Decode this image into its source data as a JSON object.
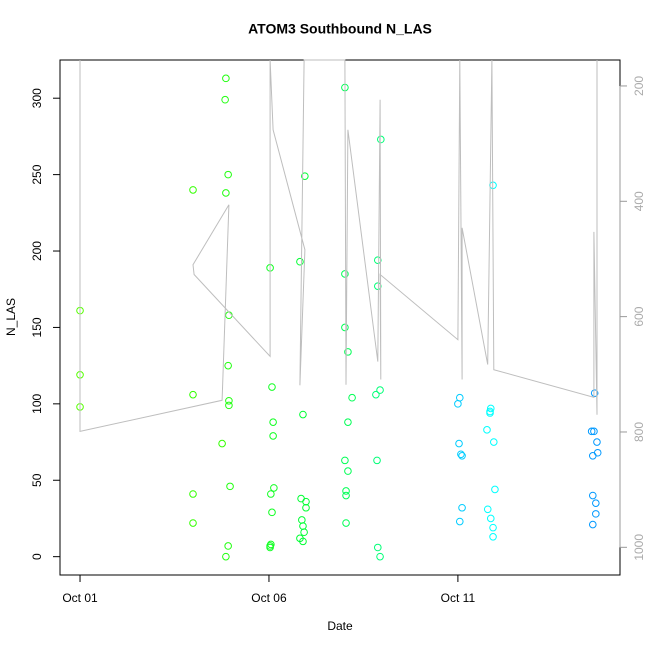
{
  "chart_data": {
    "type": "scatter",
    "title": "ATOM3 Southbound N_LAS",
    "x_label": "Date",
    "y_label": "N_LAS",
    "xlim": [
      -0.53,
      14.29
    ],
    "ylim": [
      -12,
      325
    ],
    "y2lim": [
      1048,
      155
    ],
    "xticks": [
      {
        "value": 0,
        "label": "Oct 01"
      },
      {
        "value": 5,
        "label": "Oct 06"
      },
      {
        "value": 10,
        "label": "Oct 11"
      }
    ],
    "yticks": [
      0,
      50,
      100,
      150,
      200,
      250,
      300
    ],
    "y2ticks": [
      200,
      400,
      600,
      800,
      1000
    ],
    "series": [
      {
        "color": "#55ff00",
        "x": [
          0,
          0,
          0
        ],
        "values": [
          161,
          119,
          98
        ]
      },
      {
        "color": "#33ff00",
        "x": [
          2.99,
          2.99,
          2.99,
          2.99,
          3.76
        ],
        "values": [
          240,
          106,
          41,
          22,
          74
        ]
      },
      {
        "color": "#22ff11",
        "x": [
          3.86,
          3.84,
          3.92,
          3.86,
          3.94,
          3.92,
          3.94,
          3.94,
          3.97,
          3.92,
          3.86
        ],
        "values": [
          313,
          299,
          250,
          238,
          158,
          125,
          102,
          99,
          46,
          7,
          0
        ]
      },
      {
        "color": "#11ff22",
        "x": [
          5.03,
          5.08,
          5.11,
          5.11,
          5.13,
          5.05,
          5.08,
          5.05,
          5.03,
          5.03
        ],
        "values": [
          189,
          111,
          88,
          79,
          45,
          41,
          29,
          8,
          7,
          6
        ]
      },
      {
        "color": "#00ff33",
        "x": [
          5.82,
          5.95,
          5.9,
          5.85,
          5.98,
          5.98,
          5.87,
          5.9,
          5.93,
          5.82,
          5.9
        ],
        "values": [
          193,
          249,
          93,
          38,
          36,
          32,
          24,
          20,
          16,
          12,
          10
        ]
      },
      {
        "color": "#00ff55",
        "x": [
          7.01,
          7.01,
          7.01,
          7.09,
          7.2,
          7.09,
          7.01,
          7.09,
          7.04,
          7.04,
          7.04
        ],
        "values": [
          307,
          185,
          150,
          134,
          104,
          88,
          63,
          56,
          43,
          40,
          22
        ]
      },
      {
        "color": "#00ff77",
        "x": [
          7.96,
          7.88,
          7.88,
          7.94,
          7.83,
          7.86,
          7.88,
          7.94
        ],
        "values": [
          273,
          194,
          177,
          109,
          106,
          63,
          6,
          0
        ]
      },
      {
        "color": "#00ccff",
        "x": [
          10.05,
          10,
          10.03,
          10.08,
          10.11,
          10.11,
          10.05
        ],
        "values": [
          104,
          100,
          74,
          67,
          66,
          32,
          23
        ]
      },
      {
        "color": "#00ffff",
        "x": [
          10.93,
          10.87,
          10.85,
          10.85,
          10.77,
          10.95,
          10.98,
          10.79,
          10.87,
          10.93,
          10.93
        ],
        "values": [
          243,
          97,
          95,
          94,
          83,
          75,
          44,
          31,
          25,
          19,
          13
        ]
      },
      {
        "color": "#0099ff",
        "x": [
          13.62,
          13.54,
          13.6,
          13.68,
          13.7,
          13.57,
          13.57,
          13.65,
          13.65,
          13.57
        ],
        "values": [
          107,
          82,
          82,
          75,
          68,
          66,
          40,
          35,
          28,
          21
        ]
      },
      {
        "type": "line",
        "axis": "y2",
        "color": "#bebebe",
        "x": [
          0,
          0,
          3.76,
          3.94,
          2.99,
          3.02,
          5.03,
          5.03,
          5.11,
          5.95,
          5.82,
          5.93,
          7.01,
          7.04,
          7.09,
          7.88,
          7.94,
          7.96,
          7.94,
          10,
          10.05,
          10.11,
          10.11,
          10.79,
          10.9,
          10.95,
          13.6,
          13.6,
          13.68,
          13.68
        ],
        "values": [
          155,
          799,
          745,
          406,
          510,
          527,
          669,
          155,
          276,
          484,
          719,
          155,
          155,
          718,
          276,
          678,
          224,
          709,
          527,
          640,
          155,
          709,
          446,
          683,
          155,
          692,
          740,
          453,
          770,
          155
        ]
      }
    ]
  }
}
